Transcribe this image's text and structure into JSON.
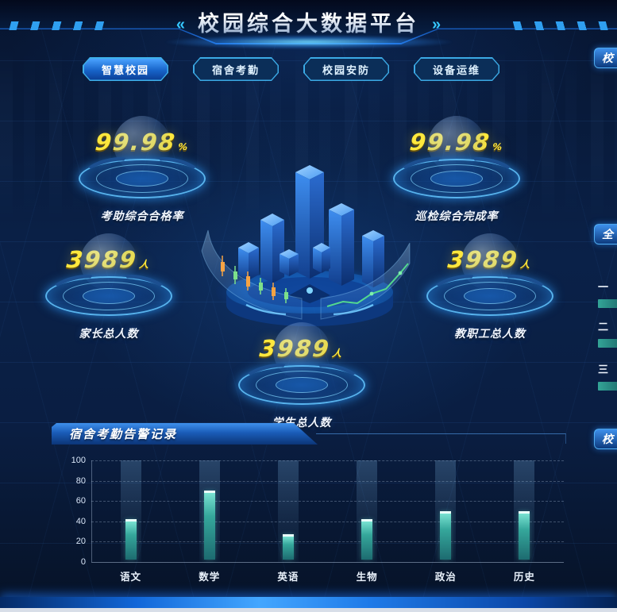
{
  "header": {
    "title": "校园综合大数据平台",
    "left_arrows": "«",
    "right_arrows": "»"
  },
  "tabs": [
    {
      "label": "智慧校园",
      "active": true
    },
    {
      "label": "宿舍考勤",
      "active": false
    },
    {
      "label": "校园安防",
      "active": false
    },
    {
      "label": "设备运维",
      "active": false
    }
  ],
  "stats": [
    {
      "value": "99.98",
      "unit": "%",
      "label": "考助综合合格率"
    },
    {
      "value": "99.98",
      "unit": "%",
      "label": "巡检综合完成率"
    },
    {
      "value": "3989",
      "unit": "人",
      "label": "家长总人数"
    },
    {
      "value": "3989",
      "unit": "人",
      "label": "教职工总人数"
    },
    {
      "value": "3989",
      "unit": "人",
      "label": "学生总人数"
    }
  ],
  "chart_panel": {
    "title": "宿舍考勤告警记录"
  },
  "chart_data": {
    "type": "bar",
    "title": "宿舍考勤告警记录",
    "categories": [
      "语文",
      "数学",
      "英语",
      "生物",
      "政治",
      "历史"
    ],
    "values": [
      42,
      70,
      27,
      42,
      50,
      50
    ],
    "xlabel": "",
    "ylabel": "",
    "ylim": [
      0,
      100
    ],
    "yticks": [
      0,
      20,
      40,
      60,
      80,
      100
    ],
    "grid": "dashed horizontal",
    "legend_position": "none",
    "bar_color": "#3fc4ad"
  },
  "right_edge": {
    "top_tab": "校",
    "mid_tab": "全",
    "bottom_tab": "校",
    "ranks": [
      "一",
      "二",
      "三"
    ]
  },
  "colors": {
    "accent_yellow": "#ffe83d",
    "accent_cyan": "#35c8ff",
    "accent_blue": "#1e7ae8",
    "bar_teal": "#3fc4ad",
    "background": "#0a1f44"
  }
}
